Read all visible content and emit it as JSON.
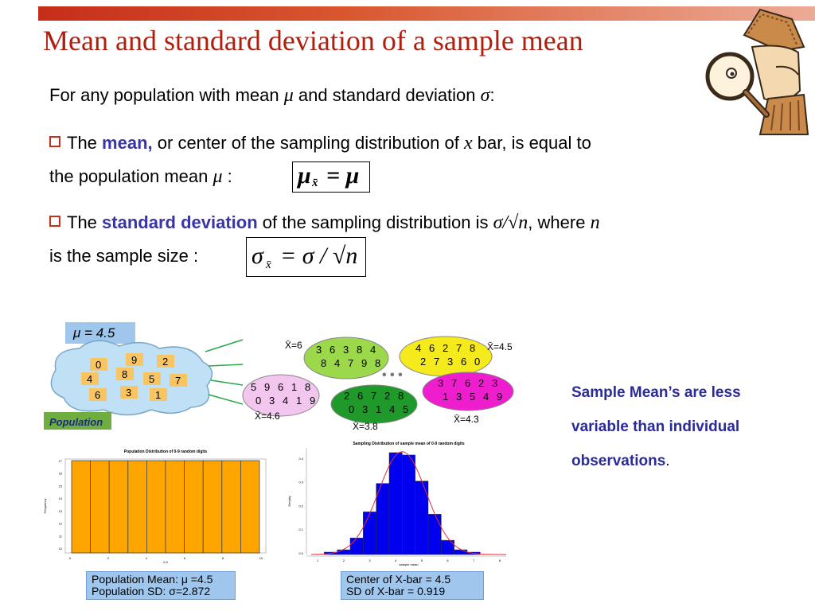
{
  "slide": {
    "title": "Mean and standard deviation of a sample mean",
    "intro_text": "For any population with mean",
    "intro_mu": "μ",
    "intro_mid": "and standard deviation",
    "intro_sigma": "σ",
    "intro_end": ":",
    "bullet1": {
      "pre": "The",
      "keyword": "mean,",
      "post": "or center of the sampling distribution of",
      "x": "x",
      "post2": "bar, is equal to",
      "line2": "the population mean",
      "mu": "μ",
      "colon": ":",
      "formula_lhs": "μ",
      "formula_sub": "x̄",
      "formula_rhs": "= μ"
    },
    "bullet2": {
      "pre": "The",
      "keyword": "standard deviation",
      "post": "of the sampling distribution is",
      "expr": "σ/√",
      "n": "n",
      "post2": ", where",
      "n2": "n",
      "line2": "is the sample size :",
      "formula_lhs": "σ",
      "formula_sub": "x̄",
      "formula_rhs": "= σ / √n"
    },
    "side_note": {
      "line1": "Sample Mean’s are less",
      "line2": "variable than individual",
      "line3": "observations",
      "period": "."
    }
  },
  "figure": {
    "population_mean_label": "μ = 4.5",
    "population_label": "Population",
    "population_digits": [
      "0",
      "9",
      "2",
      "4",
      "8",
      "5",
      "7",
      "6",
      "3",
      "1"
    ],
    "samples": [
      {
        "label": "X̄=6",
        "digits": [
          "3",
          "6",
          "3",
          "8",
          "4",
          "8",
          "4",
          "7",
          "9",
          "8"
        ],
        "color": "#9bd94a"
      },
      {
        "label": "X̄=4.5",
        "digits": [
          "4",
          "6",
          "2",
          "7",
          "8",
          "2",
          "7",
          "3",
          "6",
          "0"
        ],
        "color": "#f5ea1c"
      },
      {
        "label": "X̄=4.6",
        "digits": [
          "5",
          "9",
          "6",
          "1",
          "8",
          "0",
          "3",
          "4",
          "1",
          "9"
        ],
        "color": "#f3c6f0"
      },
      {
        "label": "X̄=3.8",
        "digits": [
          "2",
          "6",
          "7",
          "2",
          "8",
          "0",
          "3",
          "1",
          "4",
          "5"
        ],
        "color": "#1f9a2a"
      },
      {
        "label": "X̄=4.3",
        "digits": [
          "3",
          "7",
          "6",
          "2",
          "3",
          "1",
          "3",
          "5",
          "4",
          "9"
        ],
        "color": "#ee1ecf"
      }
    ],
    "ellipsis": "• • •"
  },
  "chart_data": [
    {
      "type": "bar",
      "title": "Population Distribution of 0-9 random digits",
      "xlabel": "0-9",
      "ylabel": "Frequency",
      "categories": [
        "0",
        "1",
        "2",
        "3",
        "4",
        "5",
        "6",
        "7",
        "8",
        "9"
      ],
      "values": [
        1,
        1,
        1,
        1,
        1,
        1,
        1,
        1,
        1,
        1
      ],
      "ytick_labels": [
        "10",
        "11",
        "12",
        "13",
        "14",
        "15",
        "16",
        "17"
      ],
      "xtick_labels": [
        "0",
        "2",
        "4",
        "6",
        "8",
        "10"
      ],
      "color": "#ffa500",
      "caption_line1": "Population Mean: μ =4.5",
      "caption_line2": "Population SD: σ=2.872"
    },
    {
      "type": "bar",
      "title": "Sampling Distribution of sample mean of 0-9 random digits",
      "xlabel": "sample mean",
      "ylabel": "Density",
      "categories": [
        "1",
        "1.5",
        "2",
        "2.5",
        "3",
        "3.5",
        "4",
        "4.5",
        "5",
        "5.5",
        "6",
        "6.5",
        "7",
        "7.5",
        "8"
      ],
      "values": [
        0.0,
        0.01,
        0.02,
        0.07,
        0.18,
        0.3,
        0.43,
        0.42,
        0.31,
        0.17,
        0.06,
        0.02,
        0.01,
        0.0,
        0.0
      ],
      "curve": "normal",
      "curve_mean": 4.5,
      "curve_sd": 0.919,
      "color": "#0000ee",
      "curve_color": "#e0303a",
      "caption_line1": "Center of X-bar = 4.5",
      "caption_line2": "SD of X-bar = 0.919"
    }
  ]
}
